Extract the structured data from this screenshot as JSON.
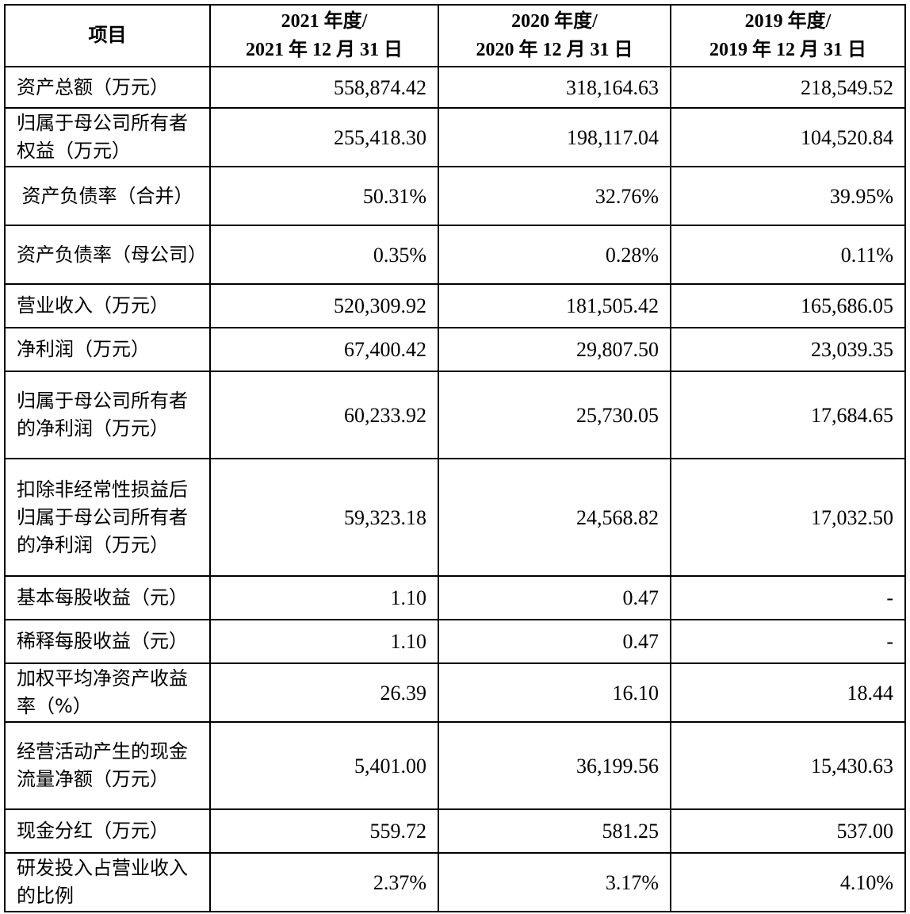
{
  "header": {
    "item": "项目",
    "col2021": {
      "line1": "2021 年度/",
      "line2": "2021 年 12 月 31 日"
    },
    "col2020": {
      "line1": "2020 年度/",
      "line2": "2020 年 12 月 31 日"
    },
    "col2019": {
      "line1": "2019 年度/",
      "line2": "2019 年 12 月 31 日"
    }
  },
  "rows": [
    {
      "label": "资产总额（万元）",
      "v2021": "558,874.42",
      "v2020": "318,164.63",
      "v2019": "218,549.52"
    },
    {
      "label": "归属于母公司所有者权益（万元）",
      "v2021": "255,418.30",
      "v2020": "198,117.04",
      "v2019": "104,520.84"
    },
    {
      "label": "资产负债率（合并）",
      "v2021": "50.31%",
      "v2020": "32.76%",
      "v2019": "39.95%"
    },
    {
      "label": "资产负债率（母公司）",
      "v2021": "0.35%",
      "v2020": "0.28%",
      "v2019": "0.11%"
    },
    {
      "label": "营业收入（万元）",
      "v2021": "520,309.92",
      "v2020": "181,505.42",
      "v2019": "165,686.05"
    },
    {
      "label": "净利润（万元）",
      "v2021": "67,400.42",
      "v2020": "29,807.50",
      "v2019": "23,039.35"
    },
    {
      "label": "归属于母公司所有者的净利润（万元）",
      "v2021": "60,233.92",
      "v2020": "25,730.05",
      "v2019": "17,684.65"
    },
    {
      "label": "扣除非经常性损益后归属于母公司所有者的净利润（万元）",
      "v2021": "59,323.18",
      "v2020": "24,568.82",
      "v2019": "17,032.50"
    },
    {
      "label": "基本每股收益（元）",
      "v2021": "1.10",
      "v2020": "0.47",
      "v2019": "-"
    },
    {
      "label": "稀释每股收益（元）",
      "v2021": "1.10",
      "v2020": "0.47",
      "v2019": "-"
    },
    {
      "label": "加权平均净资产收益率（%）",
      "v2021": "26.39",
      "v2020": "16.10",
      "v2019": "18.44"
    },
    {
      "label": "经营活动产生的现金流量净额（万元）",
      "v2021": "5,401.00",
      "v2020": "36,199.56",
      "v2019": "15,430.63"
    },
    {
      "label": "现金分红（万元）",
      "v2021": "559.72",
      "v2020": "581.25",
      "v2019": "537.00"
    },
    {
      "label": "研发投入占营业收入的比例",
      "v2021": "2.37%",
      "v2020": "3.17%",
      "v2019": "4.10%"
    }
  ]
}
